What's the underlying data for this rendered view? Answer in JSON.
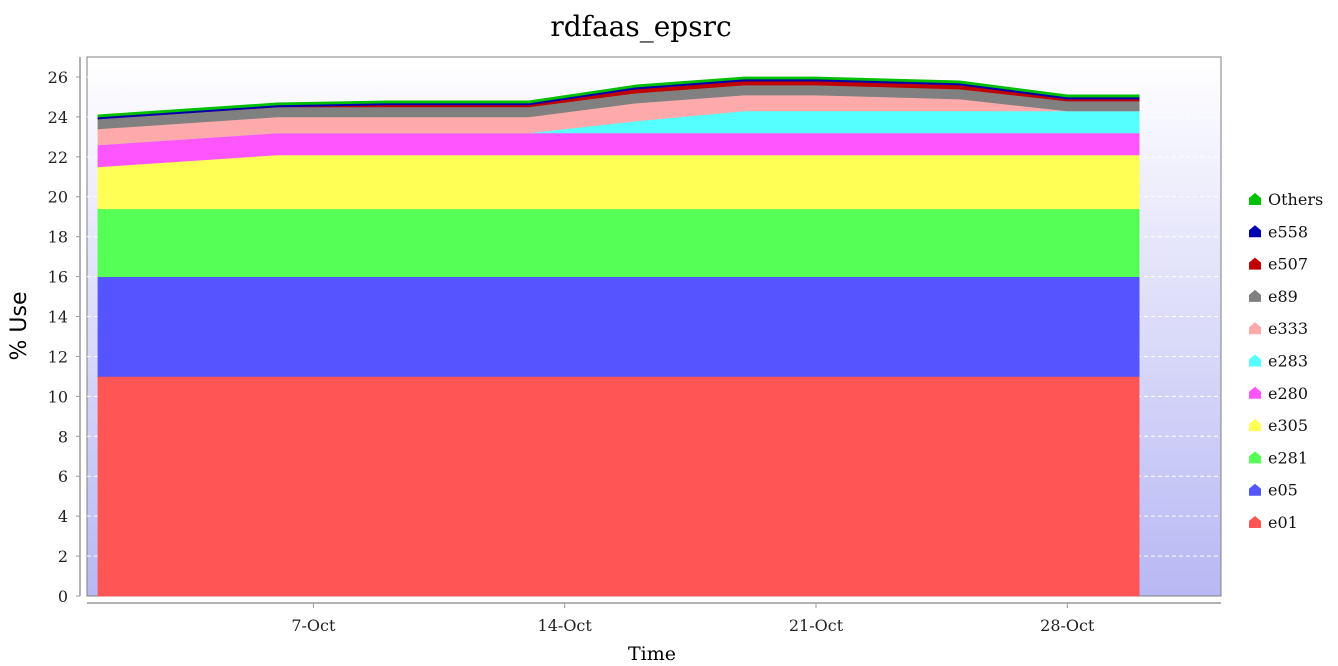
{
  "chart_data": {
    "type": "area",
    "stacked": true,
    "title": "rdfaas_epsrc",
    "xlabel": "Time",
    "ylabel": "% Use",
    "ylim": [
      0,
      27
    ],
    "yticks": [
      0,
      2,
      4,
      6,
      8,
      10,
      12,
      14,
      16,
      18,
      20,
      22,
      24,
      26
    ],
    "xticks": [
      "7-Oct",
      "14-Oct",
      "21-Oct",
      "28-Oct"
    ],
    "x": [
      "1-Oct",
      "6-Oct",
      "9-Oct",
      "13-Oct",
      "16-Oct",
      "19-Oct",
      "21-Oct",
      "25-Oct",
      "28-Oct",
      "30-Oct"
    ],
    "grid": true,
    "legend_position": "right",
    "series": [
      {
        "name": "e01",
        "color": "#ff5555",
        "values": [
          11.0,
          11.0,
          11.0,
          11.0,
          11.0,
          11.0,
          11.0,
          11.0,
          11.0,
          11.0
        ]
      },
      {
        "name": "e05",
        "color": "#5555ff",
        "values": [
          5.0,
          5.0,
          5.0,
          5.0,
          5.0,
          5.0,
          5.0,
          5.0,
          5.0,
          5.0
        ]
      },
      {
        "name": "e281",
        "color": "#55ff55",
        "values": [
          3.4,
          3.4,
          3.4,
          3.4,
          3.4,
          3.4,
          3.4,
          3.4,
          3.4,
          3.4
        ]
      },
      {
        "name": "e305",
        "color": "#ffff55",
        "values": [
          2.1,
          2.7,
          2.7,
          2.7,
          2.7,
          2.7,
          2.7,
          2.7,
          2.7,
          2.7
        ]
      },
      {
        "name": "e280",
        "color": "#ff55ff",
        "values": [
          1.1,
          1.1,
          1.1,
          1.1,
          1.1,
          1.1,
          1.1,
          1.1,
          1.1,
          1.1
        ]
      },
      {
        "name": "e283",
        "color": "#55ffff",
        "values": [
          0.0,
          0.0,
          0.0,
          0.0,
          0.6,
          1.1,
          1.1,
          1.1,
          1.1,
          1.1
        ]
      },
      {
        "name": "e333",
        "color": "#ffaaaa",
        "values": [
          0.8,
          0.8,
          0.8,
          0.8,
          0.9,
          0.8,
          0.8,
          0.6,
          0.0,
          0.0
        ]
      },
      {
        "name": "e89",
        "color": "#808080",
        "values": [
          0.5,
          0.5,
          0.5,
          0.5,
          0.5,
          0.5,
          0.5,
          0.5,
          0.5,
          0.5
        ]
      },
      {
        "name": "e507",
        "color": "#c00000",
        "values": [
          0.0,
          0.0,
          0.1,
          0.1,
          0.2,
          0.2,
          0.2,
          0.2,
          0.1,
          0.1
        ]
      },
      {
        "name": "e558",
        "color": "#0000b0",
        "values": [
          0.1,
          0.1,
          0.1,
          0.1,
          0.1,
          0.1,
          0.1,
          0.1,
          0.1,
          0.1
        ]
      },
      {
        "name": "Others",
        "color": "#00c000",
        "values": [
          0.1,
          0.1,
          0.1,
          0.1,
          0.1,
          0.1,
          0.1,
          0.1,
          0.1,
          0.1
        ]
      }
    ]
  }
}
